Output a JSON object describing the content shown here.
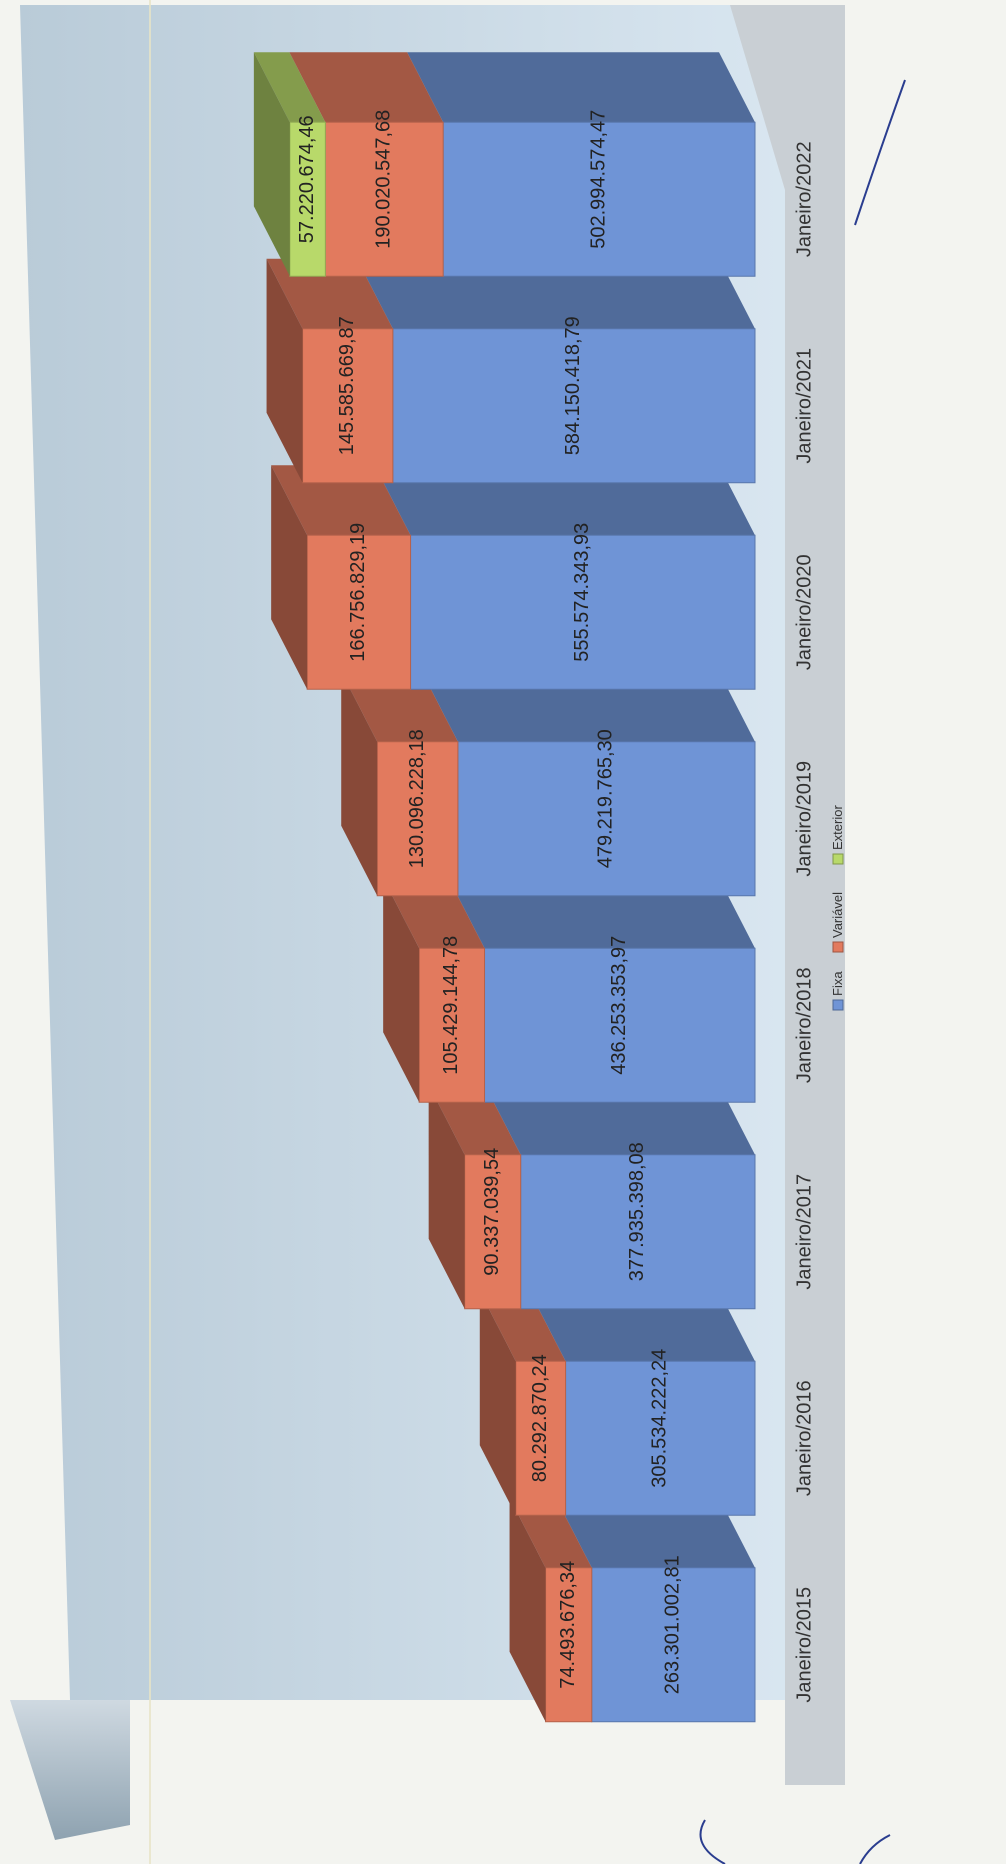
{
  "chart_data": {
    "type": "bar",
    "stacked": true,
    "orientation": "horizontal",
    "three_d": true,
    "categories": [
      "Janeiro/2015",
      "Janeiro/2016",
      "Janeiro/2017",
      "Janeiro/2018",
      "Janeiro/2019",
      "Janeiro/2020",
      "Janeiro/2021",
      "Janeiro/2022"
    ],
    "series": [
      {
        "name": "Fixa",
        "color": "#6f94d6",
        "values": [
          263301002.81,
          305534222.24,
          377935398.08,
          436253353.97,
          479219765.3,
          555574343.93,
          584150418.79,
          502994574.47
        ],
        "labels": [
          "263.301.002,81",
          "305.534.222,24",
          "377.935.398,08",
          "436.253.353,97",
          "479.219.765,30",
          "555.574.343,93",
          "584.150.418,79",
          "502.994.574,47"
        ]
      },
      {
        "name": "Variável",
        "color": "#e27a5e",
        "values": [
          74493676.34,
          80292870.24,
          90337039.54,
          105429144.78,
          130096228.18,
          166756829.19,
          145585669.87,
          190020547.68
        ],
        "labels": [
          "74.493.676,34",
          "80.292.870,24",
          "90.337.039,54",
          "105.429.144,78",
          "130.096.228,18",
          "166.756.829,19",
          "145.585.669,87",
          "190.020.547,68"
        ]
      },
      {
        "name": "Exterior",
        "color": "#b8d96a",
        "values": [
          null,
          null,
          null,
          null,
          null,
          null,
          null,
          57220674.46
        ],
        "labels": [
          "",
          "",
          "",
          "",
          "",
          "",
          "",
          "57.220.674,46"
        ]
      }
    ],
    "xlim": [
      0,
      750000000
    ],
    "grid": false,
    "legend": "bottom",
    "title": "",
    "xlabel": "",
    "ylabel": ""
  }
}
